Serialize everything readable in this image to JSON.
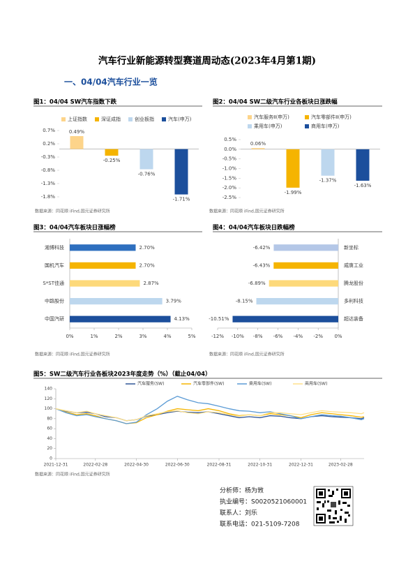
{
  "title": "汽车行业新能源转型赛道周动态(2023年4月第1期)",
  "section": "一、04/04汽车行业一览",
  "chart_data": [
    {
      "type": "bar",
      "title": "图1：04/04 SW汽车指数下跌",
      "note": "数据来源：同花顺 iFind,国元证券研究所",
      "categories": [
        "上证指数",
        "深证成指",
        "创业板指",
        "汽车(申万)"
      ],
      "values": [
        0.49,
        -0.25,
        -0.76,
        -1.71
      ],
      "value_labels": [
        "0.49%",
        "-0.25%",
        "-0.76%",
        "-1.71%"
      ],
      "colors": [
        "#fdd48a",
        "#f5b400",
        "#bdd7ee",
        "#1c4f9c"
      ],
      "ylim": [
        -1.8,
        0.7
      ],
      "yticks": [
        {
          "value": -1.8,
          "label": "-1.8%"
        },
        {
          "value": -1.3,
          "label": "-1.3%"
        },
        {
          "value": -0.8,
          "label": "-0.8%"
        },
        {
          "value": -0.3,
          "label": "-0.3%"
        },
        {
          "value": 0.2,
          "label": "0.2%"
        },
        {
          "value": 0.7,
          "label": "0.7%"
        }
      ]
    },
    {
      "type": "bar",
      "title": "图2：04/04 SW二级汽车行业各板块日涨跌幅",
      "note": "数据来源：同花顺 iFind,国元证券研究所",
      "categories": [
        "汽车服务Ⅱ(申万)",
        "汽车零部件Ⅱ(申万)",
        "乘用车(申万)",
        "商用车(申万)"
      ],
      "values": [
        0.06,
        -1.99,
        -1.37,
        -1.63
      ],
      "value_labels": [
        "0.06%",
        "-1.99%",
        "-1.37%",
        "-1.63%"
      ],
      "colors": [
        "#fdd48a",
        "#f5b400",
        "#bdd7ee",
        "#1c4f9c"
      ],
      "ylim": [
        -2.5,
        0.5
      ],
      "yticks": [
        {
          "value": -2.5,
          "label": "-2.5%"
        },
        {
          "value": -2,
          "label": "-2.0%"
        },
        {
          "value": -1.5,
          "label": "-1.5%"
        },
        {
          "value": -1,
          "label": "-1.0%"
        },
        {
          "value": -0.5,
          "label": "-0.5%"
        },
        {
          "value": 0,
          "label": "0.0%"
        },
        {
          "value": 0.5,
          "label": "0.5%"
        }
      ]
    },
    {
      "type": "hbar",
      "title": "图3：04/04汽车板块日涨幅榜",
      "note": "数据来源：同花顺 iFind,国元证券研究所",
      "categories": [
        "湘博科技",
        "国机汽车",
        "S*ST佳通",
        "中路股份",
        "中国汽研"
      ],
      "values": [
        2.7,
        2.7,
        2.87,
        3.79,
        4.13
      ],
      "value_labels": [
        "2.70%",
        "2.70%",
        "2.87%",
        "3.79%",
        "4.13%"
      ],
      "colors": [
        "#2e6fbf",
        "#f5b400",
        "#fdd97a",
        "#bdd7ee",
        "#1c4f9c"
      ],
      "xlim": [
        0,
        5
      ],
      "xticks": [
        {
          "value": 0,
          "label": "0%"
        },
        {
          "value": 1,
          "label": "1%"
        },
        {
          "value": 2,
          "label": "2%"
        },
        {
          "value": 3,
          "label": "3%"
        },
        {
          "value": 4,
          "label": "4%"
        },
        {
          "value": 5,
          "label": "5%"
        }
      ]
    },
    {
      "type": "hbar",
      "title": "图4：04/04汽车板块日跌幅榜",
      "note": "数据来源：同花顺 iFind,国元证券研究所",
      "categories": [
        "新坐标",
        "威唐工业",
        "腾龙股份",
        "多利科技",
        "超达装备"
      ],
      "values": [
        -6.42,
        -6.43,
        -6.89,
        -8.15,
        -10.51
      ],
      "value_labels": [
        "-6.42%",
        "-6.43%",
        "-6.89%",
        "-8.15%",
        "-10.51%"
      ],
      "colors": [
        "#b4c7e7",
        "#f5b400",
        "#fdd97a",
        "#bdd7ee",
        "#1c4f9c"
      ],
      "xlim": [
        -12,
        0
      ],
      "xticks": [
        {
          "value": -12,
          "label": "-12%"
        },
        {
          "value": -10,
          "label": "-10%"
        },
        {
          "value": -8,
          "label": "-8%"
        },
        {
          "value": -6,
          "label": "-6%"
        },
        {
          "value": -4,
          "label": "-4%"
        },
        {
          "value": -2,
          "label": "-2%"
        },
        {
          "value": 0,
          "label": "0%"
        }
      ]
    },
    {
      "type": "line",
      "title": "图5：SW二级汽车行业各板块2023年度走势（%）（截止04/04）",
      "note": "数据来源：同花顺 iFind,国元证券研究所",
      "x": [
        "2021-12-31",
        "2022-01-15",
        "2022-01-31",
        "2022-02-15",
        "2022-02-28",
        "2022-03-15",
        "2022-03-31",
        "2022-04-15",
        "2022-04-30",
        "2022-05-15",
        "2022-05-31",
        "2022-06-15",
        "2022-06-30",
        "2022-07-15",
        "2022-07-31",
        "2022-08-15",
        "2022-08-31",
        "2022-09-15",
        "2022-09-30",
        "2022-10-15",
        "2022-10-31",
        "2022-11-15",
        "2022-11-30",
        "2022-12-15",
        "2022-12-31",
        "2023-01-15",
        "2023-01-31",
        "2023-02-15",
        "2023-02-28",
        "2023-03-15",
        "2023-03-31",
        "2023-04-04"
      ],
      "series": [
        {
          "name": "汽车服务(SW)",
          "color": "#2f5597",
          "values": [
            100,
            95,
            92,
            93,
            90,
            84,
            82,
            76,
            78,
            85,
            88,
            92,
            95,
            93,
            92,
            94,
            90,
            86,
            82,
            84,
            82,
            86,
            85,
            82,
            80,
            84,
            86,
            84,
            83,
            82,
            80,
            82
          ]
        },
        {
          "name": "汽车零部件(SW)",
          "color": "#f5b400",
          "values": [
            100,
            93,
            88,
            90,
            86,
            80,
            76,
            70,
            72,
            82,
            88,
            95,
            100,
            98,
            96,
            100,
            96,
            90,
            86,
            88,
            86,
            90,
            88,
            86,
            82,
            88,
            92,
            90,
            88,
            86,
            83,
            84
          ]
        },
        {
          "name": "乘用车(SW)",
          "color": "#5b9bd5",
          "values": [
            100,
            92,
            86,
            88,
            84,
            80,
            76,
            70,
            73,
            88,
            100,
            115,
            125,
            118,
            112,
            110,
            105,
            100,
            96,
            95,
            92,
            94,
            90,
            86,
            80,
            84,
            88,
            86,
            85,
            82,
            78,
            80
          ]
        },
        {
          "name": "商用车(SW)",
          "color": "#ffe08a",
          "values": [
            100,
            96,
            92,
            95,
            90,
            86,
            82,
            76,
            78,
            86,
            90,
            94,
            96,
            92,
            90,
            94,
            92,
            88,
            85,
            88,
            86,
            92,
            92,
            90,
            88,
            92,
            96,
            94,
            93,
            92,
            90,
            92
          ]
        }
      ],
      "xlim": [
        "2021-12-31",
        "2023-04-04"
      ],
      "xticks": [
        "2021-12-31",
        "2022-02-28",
        "2022-04-30",
        "2022-06-30",
        "2022-08-31",
        "2022-10-31",
        "2022-12-31",
        "2023-02-28"
      ],
      "ylim": [
        0,
        140
      ],
      "yticks": [
        0,
        20,
        40,
        60,
        80,
        100,
        120,
        140
      ]
    }
  ],
  "contact": [
    "分析师：杨为敩",
    "执业编号：S0020521060001",
    "联系人：刘乐",
    "联系电话：021-5109-7208"
  ]
}
